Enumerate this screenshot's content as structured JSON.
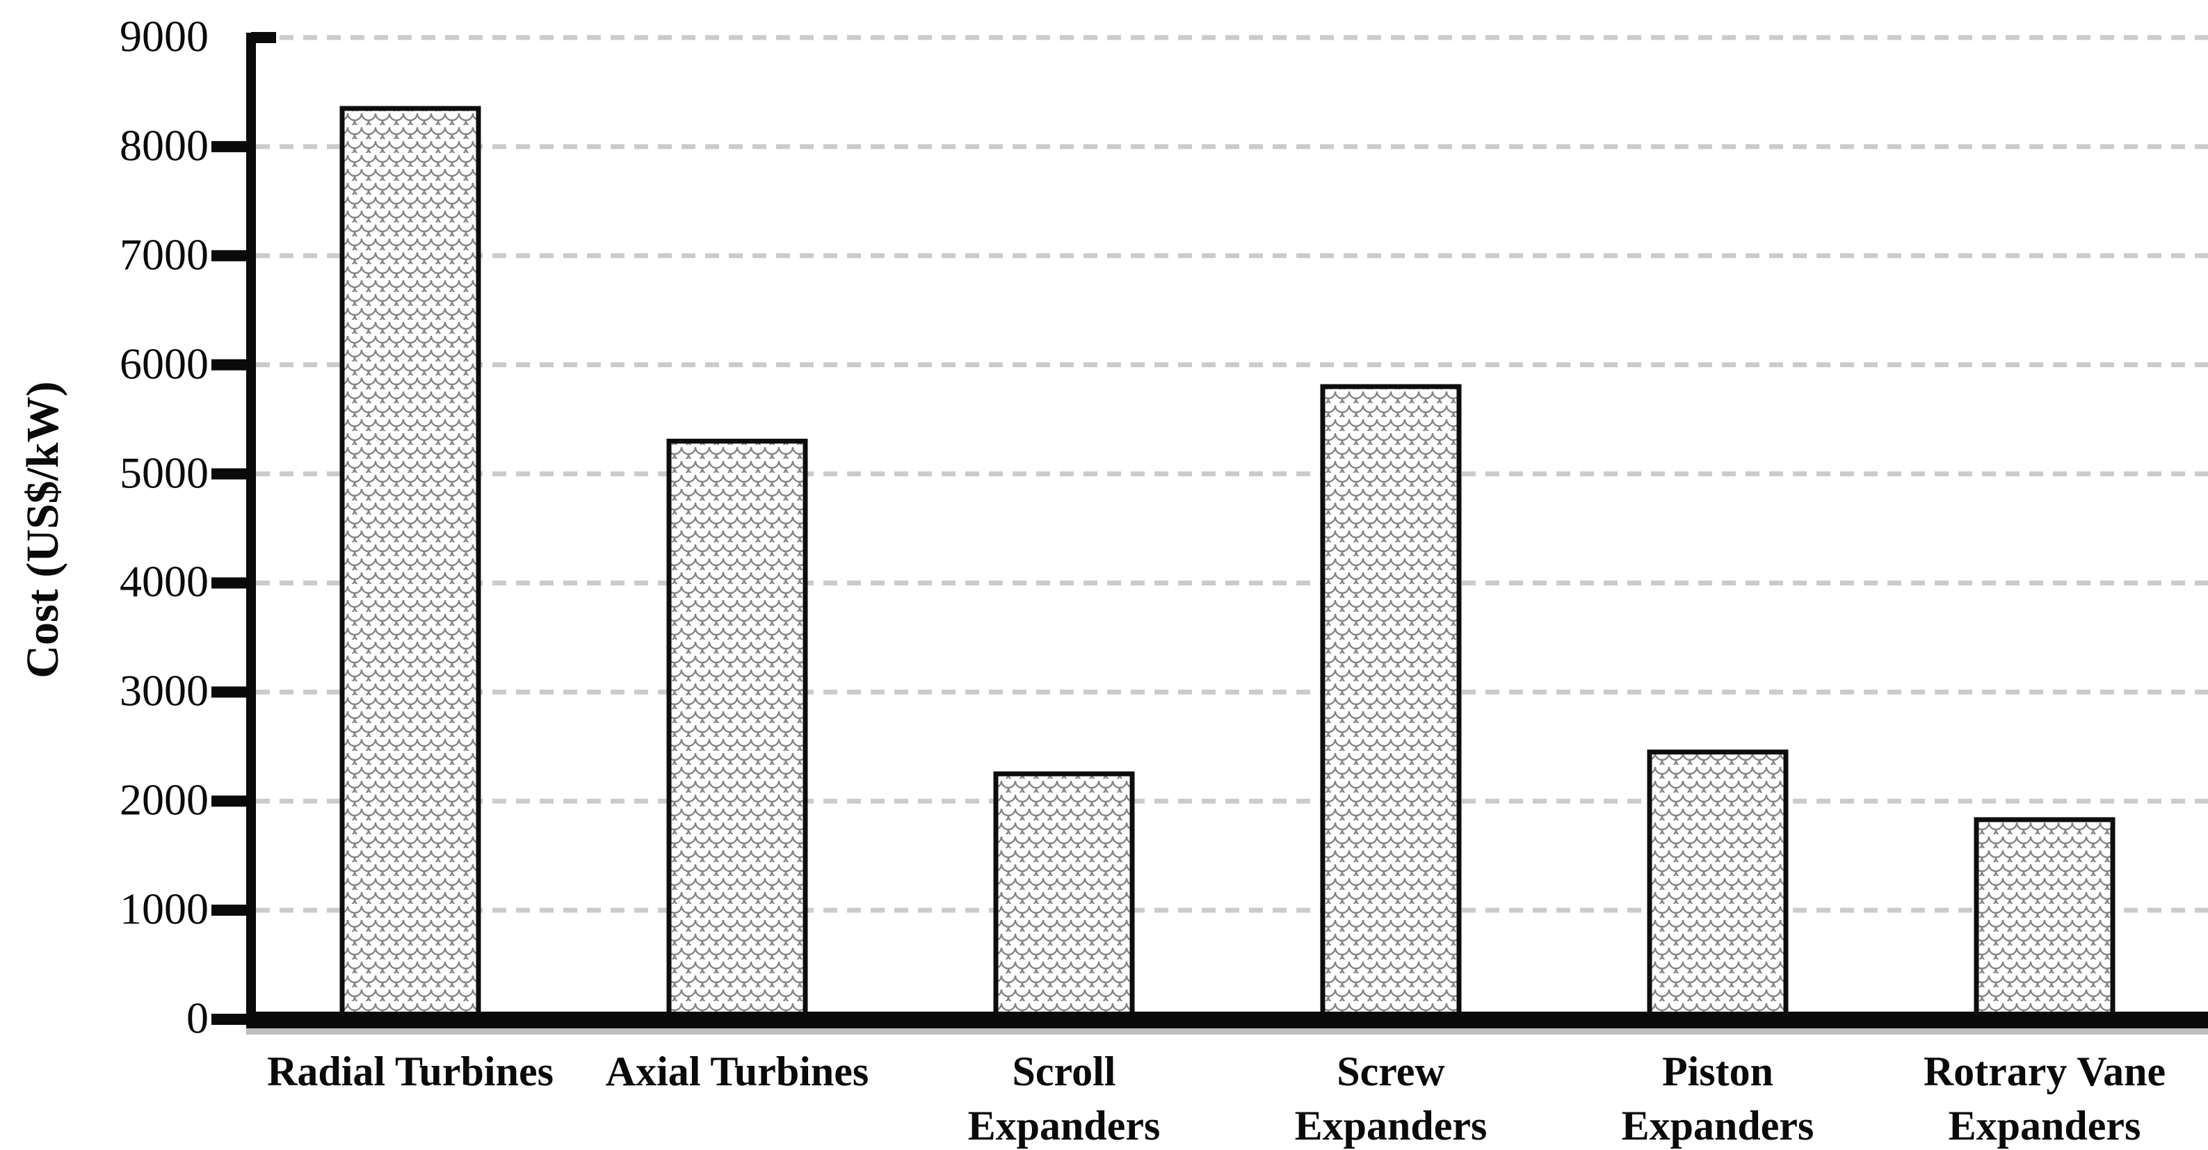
{
  "chart_data": {
    "type": "bar",
    "title": "",
    "ylabel": "Cost (US$/kW)",
    "xlabel": "",
    "ylim": [
      0,
      9000
    ],
    "yticks": [
      0,
      1000,
      2000,
      3000,
      4000,
      5000,
      6000,
      7000,
      8000,
      9000
    ],
    "categories": [
      "Radial Turbines",
      "Axial Turbines",
      "Scroll Expanders",
      "Screw Expanders",
      "Piston Expanders",
      "Rotrary Vane Expanders"
    ],
    "category_lines": [
      [
        "Radial Turbines"
      ],
      [
        "Axial Turbines"
      ],
      [
        "Scroll",
        "Expanders"
      ],
      [
        "Screw",
        "Expanders"
      ],
      [
        "Piston",
        "Expanders"
      ],
      [
        "Rotrary Vane",
        "Expanders"
      ]
    ],
    "values": [
      8350,
      5300,
      2250,
      5800,
      2450,
      1830
    ],
    "grid": "horizontal-dashed",
    "legend_position": "none",
    "style": {
      "ink_color": "#0a0a0a",
      "grid_color": "#cbcbcb",
      "bar_fill": "#ffffff",
      "bar_hatch_color": "#848484",
      "bar_border_color": "#0d0d0d",
      "axis_shadow_color": "#bdbdbd"
    }
  }
}
